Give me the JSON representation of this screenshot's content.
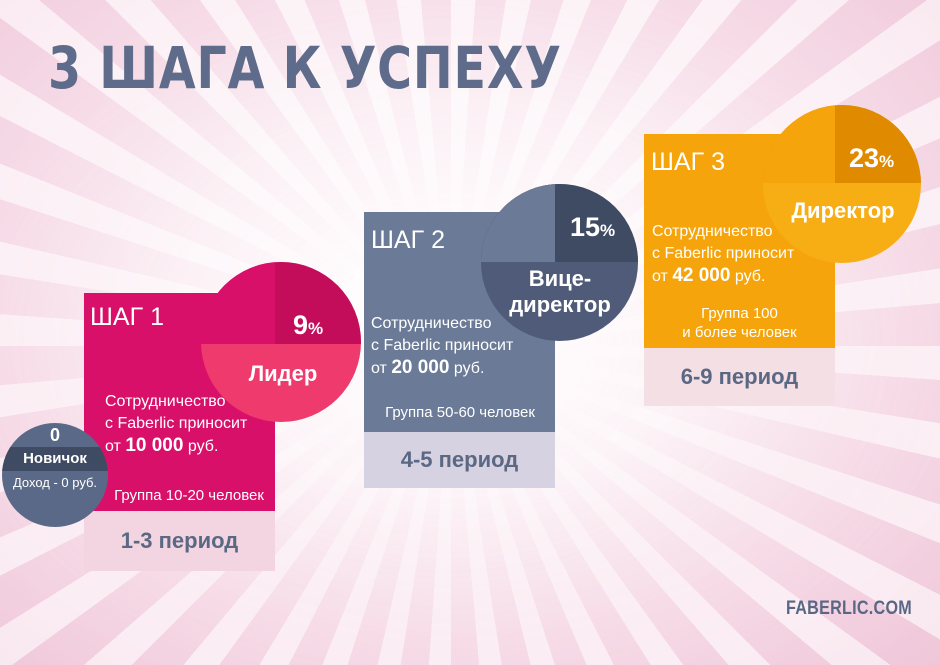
{
  "title": "3 ШАГА К УСПЕХУ",
  "novice": {
    "number": "0",
    "rank": "Новичок",
    "income": "Доход - 0 руб."
  },
  "steps": [
    {
      "label": "ШАГ 1",
      "percent": "9",
      "percent_sign": "%",
      "rank": "Лидер",
      "text_line1": "Сотрудничество",
      "text_line2": "с Faberlic приносит",
      "text_prefix": "от",
      "amount": "10 000",
      "currency": "руб.",
      "group": "Группа 10-20 человек",
      "period": "1-3 период",
      "colors": {
        "main": "#d8106a",
        "circle_top": "#c40d5a",
        "circle_bottom": "#ee3a6c",
        "foot": "#f2d5e0",
        "foot_text": "#5b6884"
      }
    },
    {
      "label": "ШАГ 2",
      "percent": "15",
      "percent_sign": "%",
      "rank_line1": "Вице-",
      "rank_line2": "директор",
      "text_line1": "Сотрудничество",
      "text_line2": "с Faberlic приносит",
      "text_prefix": "от",
      "amount": "20 000",
      "currency": "руб.",
      "group": "Группа 50-60 человек",
      "period": "4-5 период",
      "colors": {
        "main": "#6b7a96",
        "circle_top": "#3f4a63",
        "circle_bottom": "#4f5b78",
        "foot": "#d6d2e2",
        "foot_text": "#5b6884"
      }
    },
    {
      "label": "ШАГ 3",
      "percent": "23",
      "percent_sign": "%",
      "rank": "Директор",
      "text_line1": "Сотрудничество",
      "text_line2": "с Faberlic приносит",
      "text_prefix": "от",
      "amount": "42 000",
      "currency": "руб.",
      "group_line1": "Группа 100",
      "group_line2": "и более человек",
      "period": "6-9 период",
      "colors": {
        "main": "#f5a40c",
        "circle_top": "#e08a00",
        "circle_bottom": "#f7ad14",
        "foot": "#f3dfe4",
        "foot_text": "#5b6884"
      }
    }
  ],
  "logo": "FABERLIC.COM"
}
